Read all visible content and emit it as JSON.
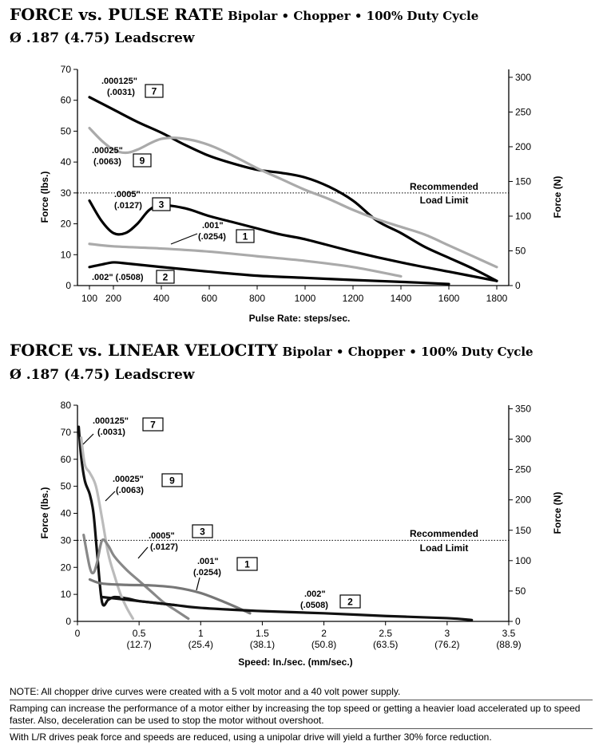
{
  "charts": [
    {
      "title_main": "FORCE vs. PULSE RATE",
      "title_sub": "Bipolar • Chopper • 100% Duty Cycle",
      "subtitle": "Ø .187 (4.75) Leadscrew"
    },
    {
      "title_main": "FORCE vs. LINEAR VELOCITY",
      "title_sub": "Bipolar • Chopper • 100% Duty Cycle",
      "subtitle": "Ø .187 (4.75) Leadscrew"
    }
  ],
  "chart_data": [
    {
      "type": "line",
      "title": "FORCE vs. PULSE RATE",
      "xlabel": "Pulse Rate:  steps/sec.",
      "ylabel": "Force (lbs.)",
      "y2label": "Force (N)",
      "xlim": [
        50,
        1850
      ],
      "ylim": [
        0,
        70
      ],
      "y2lim": [
        0,
        311.4
      ],
      "xticks": [
        100,
        200,
        400,
        600,
        800,
        1000,
        1200,
        1400,
        1600,
        1800
      ],
      "yticks": [
        0,
        10,
        20,
        30,
        40,
        50,
        60,
        70
      ],
      "y2ticks": [
        0,
        50,
        100,
        150,
        200,
        250,
        300
      ],
      "reference_line": {
        "y": 30,
        "label1": "Recommended",
        "label2": "Load Limit"
      },
      "series": [
        {
          "name": ".000125\" (.0031)",
          "id": "7",
          "color": "#000000",
          "x": [
            100,
            200,
            300,
            400,
            500,
            600,
            700,
            800,
            900,
            1000,
            1100,
            1200,
            1300,
            1400,
            1500,
            1600,
            1700,
            1800
          ],
          "y": [
            61,
            57,
            53,
            49.5,
            45.5,
            42,
            39.5,
            37.5,
            36.5,
            35,
            32,
            27.5,
            21,
            17,
            12.5,
            9,
            5.5,
            1.5
          ]
        },
        {
          "name": ".00025\" (.0063)",
          "id": "9",
          "color": "#aaaaaa",
          "x": [
            100,
            150,
            200,
            250,
            300,
            400,
            500,
            600,
            700,
            800,
            900,
            1000,
            1100,
            1200,
            1300,
            1400,
            1500,
            1600,
            1700,
            1800
          ],
          "y": [
            51,
            47,
            44,
            43,
            44,
            47.5,
            47.5,
            45.5,
            42,
            38,
            34.5,
            31,
            28,
            24.5,
            21.5,
            19,
            16.5,
            13,
            9.5,
            6
          ]
        },
        {
          "name": ".0005\" (.0127)",
          "id": "3",
          "color": "#000000",
          "x": [
            100,
            150,
            200,
            250,
            300,
            350,
            400,
            500,
            600,
            700,
            800,
            900,
            1000,
            1200,
            1400,
            1600,
            1800
          ],
          "y": [
            27.5,
            21,
            17,
            17,
            20,
            24.5,
            26,
            25,
            22.5,
            20.5,
            18.5,
            16.5,
            15,
            11,
            7.5,
            4.5,
            1.5
          ]
        },
        {
          "name": ".001\" (.0254)",
          "id": "1",
          "color": "#aaaaaa",
          "x": [
            100,
            200,
            400,
            600,
            800,
            1000,
            1200,
            1400
          ],
          "y": [
            13.5,
            12.7,
            12,
            11,
            9.5,
            8,
            6,
            3
          ]
        },
        {
          "name": ".002\" (.0508)",
          "id": "2",
          "color": "#000000",
          "x": [
            100,
            150,
            200,
            250,
            400,
            600,
            800,
            1000,
            1200,
            1400,
            1600
          ],
          "y": [
            6,
            6.8,
            7.5,
            7.2,
            6,
            4.5,
            3.2,
            2.5,
            1.8,
            1.2,
            0.5
          ]
        }
      ]
    },
    {
      "type": "line",
      "title": "FORCE vs. LINEAR VELOCITY",
      "xlabel": "Speed:  In./sec. (mm/sec.)",
      "ylabel": "Force (lbs.)",
      "y2label": "Force (N)",
      "xlim": [
        0,
        3.5
      ],
      "ylim": [
        0,
        80
      ],
      "y2lim": [
        0,
        355.8
      ],
      "xticks": [
        0,
        0.5,
        1,
        1.5,
        2,
        2.5,
        3,
        3.5
      ],
      "xticklabels": [
        [
          "0",
          ""
        ],
        [
          "0.5",
          "(12.7)"
        ],
        [
          "1",
          "(25.4)"
        ],
        [
          "1.5",
          "(38.1)"
        ],
        [
          "2",
          "(50.8)"
        ],
        [
          "2.5",
          "(63.5)"
        ],
        [
          "3",
          "(76.2)"
        ],
        [
          "3.5",
          "(88.9)"
        ]
      ],
      "yticks": [
        0,
        10,
        20,
        30,
        40,
        50,
        60,
        70,
        80
      ],
      "y2ticks": [
        0,
        50,
        100,
        150,
        200,
        250,
        300,
        350
      ],
      "reference_line": {
        "y": 30,
        "label1": "Recommended",
        "label2": "Load Limit"
      },
      "series": [
        {
          "name": ".000125\" (.0031)",
          "id": "7",
          "color": "#111111",
          "x": [
            0.01,
            0.03,
            0.06,
            0.1,
            0.13,
            0.16,
            0.2,
            0.25,
            0.3,
            0.4,
            0.5,
            0.6,
            0.8
          ],
          "y": [
            72,
            61,
            52,
            47,
            40,
            25,
            7,
            8,
            9,
            8.5,
            7.5,
            7,
            6
          ]
        },
        {
          "name": ".00025\" (.0063)",
          "id": "9",
          "color": "#bbbbbb",
          "x": [
            0.03,
            0.06,
            0.1,
            0.15,
            0.2,
            0.25,
            0.3,
            0.35,
            0.4,
            0.45
          ],
          "y": [
            68,
            58,
            55,
            50,
            38,
            25,
            17,
            10,
            5,
            1
          ]
        },
        {
          "name": ".0005\" (.0127)",
          "id": "3",
          "color": "#888888",
          "x": [
            0.05,
            0.1,
            0.13,
            0.16,
            0.2,
            0.25,
            0.3,
            0.4,
            0.5,
            0.6,
            0.7,
            0.8,
            0.9
          ],
          "y": [
            32,
            20,
            18,
            22,
            30,
            28,
            24,
            19,
            15,
            11,
            7,
            4,
            1
          ]
        },
        {
          "name": ".001\" (.0254)",
          "id": "1",
          "color": "#777777",
          "x": [
            0.1,
            0.2,
            0.4,
            0.6,
            0.8,
            1.0,
            1.2,
            1.4
          ],
          "y": [
            15.5,
            14,
            13.5,
            13.3,
            12.5,
            10.5,
            7,
            3
          ]
        },
        {
          "name": ".002\" (.0508)",
          "id": "2",
          "color": "#111111",
          "x": [
            0.2,
            0.3,
            0.5,
            0.8,
            1.0,
            1.5,
            2.0,
            2.5,
            3.0,
            3.2
          ],
          "y": [
            9,
            8.5,
            7.5,
            6,
            5,
            3.8,
            3,
            2,
            1.2,
            0.5
          ]
        }
      ]
    }
  ],
  "labels": {
    "c1": {
      "s7a": ".000125\"",
      "s7b": "(.0031)",
      "s7id": "7",
      "s9a": ".00025\"",
      "s9b": "(.0063)",
      "s9id": "9",
      "s3a": ".0005\"",
      "s3b": "(.0127)",
      "s3id": "3",
      "s1a": ".001\"",
      "s1b": "(.0254)",
      "s1id": "1",
      "s2a": ".002\" (.0508)",
      "s2id": "2"
    },
    "c2": {
      "s7a": ".000125\"",
      "s7b": "(.0031)",
      "s7id": "7",
      "s9a": ".00025\"",
      "s9b": "(.0063)",
      "s9id": "9",
      "s3a": ".0005\"",
      "s3b": "(.0127)",
      "s3id": "3",
      "s1a": ".001\"",
      "s1b": "(.0254)",
      "s1id": "1",
      "s2a": ".002\"",
      "s2b": "(.0508)",
      "s2id": "2"
    }
  },
  "notes": [
    "NOTE: All chopper drive curves were created with a 5 volt motor and a 40 volt power supply.",
    "Ramping can increase the performance of a motor either by increasing the top speed or getting a heavier load accelerated up to speed faster.  Also, deceleration can be used to stop the motor without overshoot.",
    "With L/R drives peak force and speeds are reduced, using a unipolar drive will yield a further 30% force reduction."
  ]
}
